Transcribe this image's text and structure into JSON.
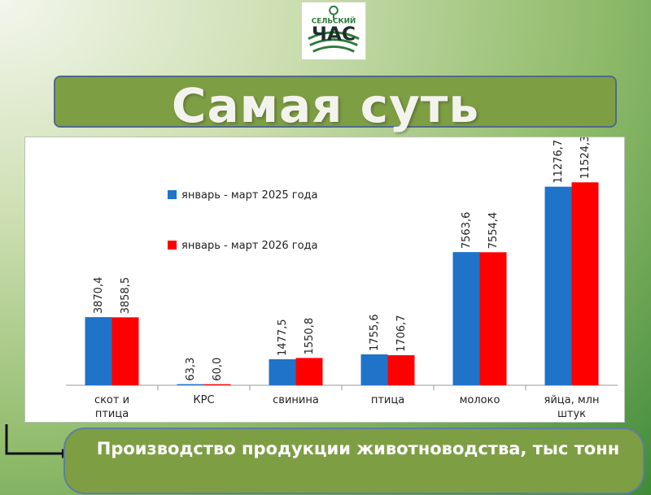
{
  "logo": {
    "text_top": "СЕЛЬСКИЙ",
    "text_main": "ЧАС"
  },
  "title": "Самая суть",
  "caption": "Производство продукции животноводства, тыс тонн",
  "colors": {
    "series_2025": "#1f73c8",
    "series_2026": "#ff0000",
    "panel": "#7e9e44"
  },
  "chart_data": {
    "type": "bar",
    "categories": [
      [
        "скот и",
        "птица"
      ],
      [
        "КРС"
      ],
      [
        "свинина"
      ],
      [
        "птица"
      ],
      [
        "молоко"
      ],
      [
        "яйца, млн",
        "штук"
      ]
    ],
    "series": [
      {
        "name": "январь - март 2025 года",
        "values": [
          3870.4,
          63.3,
          1477.5,
          1755.6,
          7563.6,
          11276.7
        ],
        "labels": [
          "3870,4",
          "63,3",
          "1477,5",
          "1755,6",
          "7563,6",
          "11276,7"
        ]
      },
      {
        "name": "январь - март 2026 года",
        "values": [
          3858.5,
          60.0,
          1550.8,
          1706.7,
          7554.4,
          11524.3
        ],
        "labels": [
          "3858,5",
          "60,0",
          "1550,8",
          "1706,7",
          "7554,4",
          "11524,3"
        ]
      }
    ],
    "ylim": [
      0,
      12000
    ],
    "legend": "top-left",
    "grid": false
  }
}
